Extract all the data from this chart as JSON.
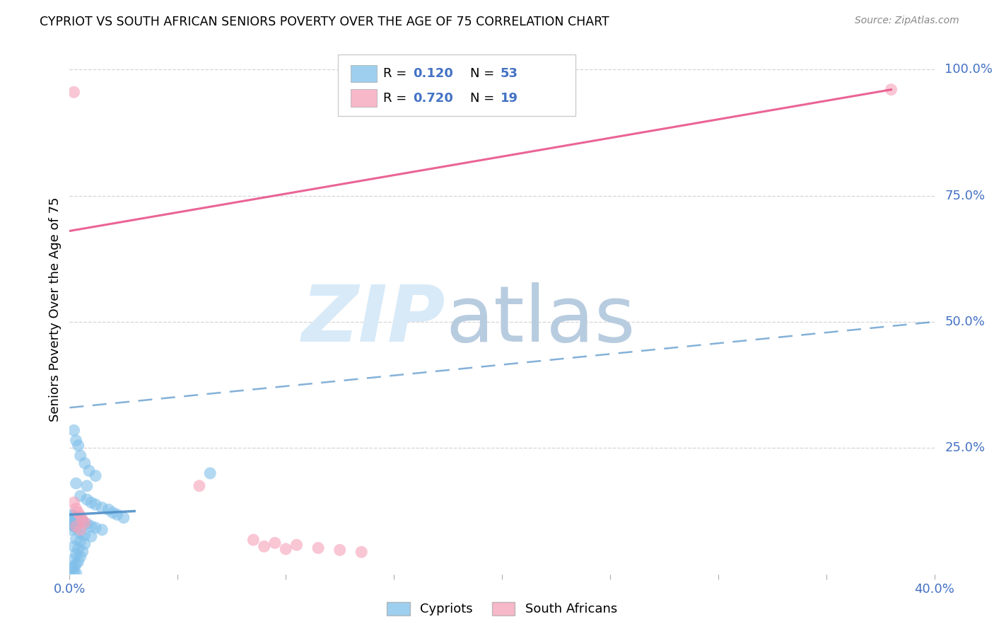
{
  "title": "CYPRIOT VS SOUTH AFRICAN SENIORS POVERTY OVER THE AGE OF 75 CORRELATION CHART",
  "source": "Source: ZipAtlas.com",
  "ylabel": "Seniors Poverty Over the Age of 75",
  "xlim": [
    0.0,
    0.4
  ],
  "ylim": [
    0.0,
    1.05
  ],
  "x_ticks": [
    0.0,
    0.05,
    0.1,
    0.15,
    0.2,
    0.25,
    0.3,
    0.35,
    0.4
  ],
  "x_tick_labels": [
    "0.0%",
    "",
    "",
    "",
    "",
    "",
    "",
    "",
    "40.0%"
  ],
  "y_tick_labels": [
    "25.0%",
    "50.0%",
    "75.0%",
    "100.0%"
  ],
  "y_ticks": [
    0.25,
    0.5,
    0.75,
    1.0
  ],
  "blue_color": "#7fbfea",
  "pink_color": "#f5a0b8",
  "trend_blue_color": "#5090c8",
  "trend_pink_color": "#e8538a",
  "blue_scatter": [
    [
      0.002,
      0.285
    ],
    [
      0.003,
      0.265
    ],
    [
      0.004,
      0.255
    ],
    [
      0.005,
      0.235
    ],
    [
      0.007,
      0.22
    ],
    [
      0.009,
      0.205
    ],
    [
      0.012,
      0.195
    ],
    [
      0.003,
      0.18
    ],
    [
      0.008,
      0.175
    ],
    [
      0.065,
      0.2
    ],
    [
      0.005,
      0.155
    ],
    [
      0.008,
      0.148
    ],
    [
      0.01,
      0.142
    ],
    [
      0.012,
      0.138
    ],
    [
      0.015,
      0.132
    ],
    [
      0.018,
      0.128
    ],
    [
      0.02,
      0.122
    ],
    [
      0.022,
      0.118
    ],
    [
      0.025,
      0.112
    ],
    [
      0.004,
      0.108
    ],
    [
      0.006,
      0.105
    ],
    [
      0.008,
      0.1
    ],
    [
      0.01,
      0.095
    ],
    [
      0.012,
      0.092
    ],
    [
      0.015,
      0.088
    ],
    [
      0.005,
      0.082
    ],
    [
      0.007,
      0.078
    ],
    [
      0.01,
      0.075
    ],
    [
      0.003,
      0.07
    ],
    [
      0.005,
      0.065
    ],
    [
      0.007,
      0.06
    ],
    [
      0.002,
      0.055
    ],
    [
      0.004,
      0.05
    ],
    [
      0.006,
      0.045
    ],
    [
      0.003,
      0.04
    ],
    [
      0.005,
      0.035
    ],
    [
      0.002,
      0.03
    ],
    [
      0.004,
      0.025
    ],
    [
      0.003,
      0.02
    ],
    [
      0.002,
      0.015
    ],
    [
      0.001,
      0.01
    ],
    [
      0.002,
      0.005
    ],
    [
      0.003,
      0.002
    ],
    [
      0.001,
      0.118
    ],
    [
      0.002,
      0.115
    ],
    [
      0.003,
      0.112
    ],
    [
      0.001,
      0.108
    ],
    [
      0.002,
      0.105
    ],
    [
      0.001,
      0.102
    ],
    [
      0.001,
      0.098
    ],
    [
      0.002,
      0.095
    ],
    [
      0.003,
      0.092
    ],
    [
      0.001,
      0.088
    ]
  ],
  "pink_scatter": [
    [
      0.002,
      0.955
    ],
    [
      0.002,
      0.142
    ],
    [
      0.003,
      0.13
    ],
    [
      0.004,
      0.122
    ],
    [
      0.005,
      0.115
    ],
    [
      0.006,
      0.108
    ],
    [
      0.007,
      0.102
    ],
    [
      0.003,
      0.095
    ],
    [
      0.005,
      0.088
    ],
    [
      0.06,
      0.175
    ],
    [
      0.085,
      0.068
    ],
    [
      0.095,
      0.062
    ],
    [
      0.105,
      0.058
    ],
    [
      0.115,
      0.052
    ],
    [
      0.125,
      0.048
    ],
    [
      0.135,
      0.044
    ],
    [
      0.09,
      0.055
    ],
    [
      0.1,
      0.05
    ],
    [
      0.38,
      0.96
    ]
  ],
  "blue_trend_line": [
    [
      0.0,
      0.33
    ],
    [
      0.4,
      0.5
    ]
  ],
  "blue_short_line": [
    [
      0.0,
      0.118
    ],
    [
      0.03,
      0.125
    ]
  ],
  "pink_trend_line": [
    [
      0.0,
      0.68
    ],
    [
      0.38,
      0.96
    ]
  ]
}
